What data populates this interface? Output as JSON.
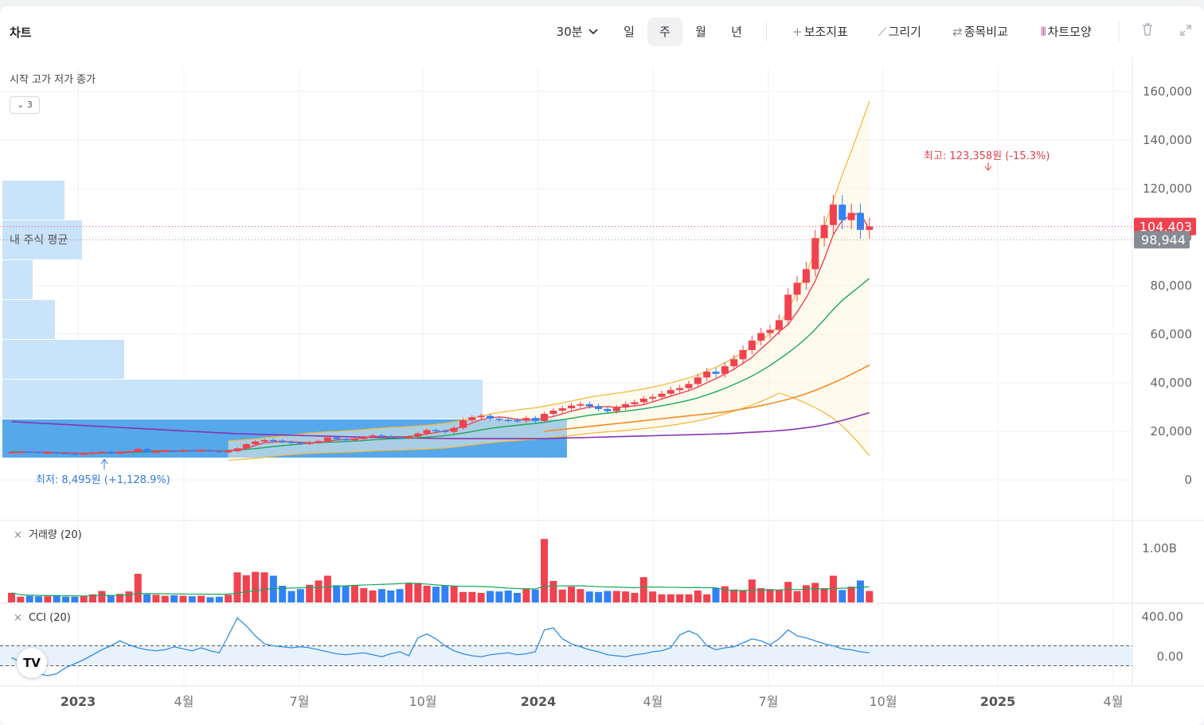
{
  "toolbar": {
    "title": "차트",
    "interval": "30분",
    "periods": [
      "일",
      "주",
      "월",
      "년"
    ],
    "active_period": "주",
    "tools": [
      {
        "icon": "plus-icon",
        "label": "보조지표"
      },
      {
        "icon": "pencil-icon",
        "label": "그리기"
      },
      {
        "icon": "compare-icon",
        "label": "종목비교"
      },
      {
        "icon": "candle-icon",
        "label": "차트모양"
      }
    ]
  },
  "ohlc_label": "시작 고가 저가 종가",
  "collapse_label": "3",
  "my_avg_label": "내 주식 평균",
  "colors": {
    "up": "#f0424f",
    "down": "#3282f6",
    "ma5": "#f0424f",
    "ma20": "#19a85c",
    "ma60": "#f28b26",
    "ma120": "#8b33b0",
    "band": "#f2b632"
  },
  "chart_data": {
    "type": "candlestick",
    "interval": "주",
    "x_ticks": [
      "2023",
      "4월",
      "7월",
      "10월",
      "2024",
      "4월",
      "7월",
      "10월",
      "2025",
      "4월"
    ],
    "y_ticks": [
      "160,000",
      "140,000",
      "120,000",
      "100,000",
      "80,000",
      "60,000",
      "40,000",
      "20,000",
      "0"
    ],
    "ylim": [
      0,
      160000
    ],
    "current_price": "104,403",
    "avg_price": "98,944",
    "high_label": "최고: 123,358원 (-15.3%)",
    "low_label": "최저: 8,495원 (+1,128.9%)",
    "close": [
      11500,
      11600,
      11500,
      11000,
      11300,
      11000,
      10800,
      10600,
      10800,
      11200,
      11600,
      10900,
      11300,
      11800,
      12800,
      11500,
      11600,
      12000,
      11800,
      12200,
      12000,
      12200,
      11900,
      11500,
      11800,
      13000,
      14700,
      15800,
      16400,
      16200,
      15700,
      15300,
      14800,
      15500,
      16000,
      17500,
      16800,
      16500,
      16800,
      17700,
      18300,
      17900,
      17600,
      17400,
      17800,
      19100,
      20500,
      20200,
      19800,
      21400,
      24600,
      25800,
      26400,
      25200,
      24800,
      24600,
      24400,
      25500,
      24300,
      27200,
      28500,
      29500,
      30600,
      31200,
      30300,
      29200,
      28300,
      29800,
      31200,
      32000,
      33500,
      34200,
      35500,
      37000,
      37800,
      39500,
      42200,
      44600,
      43700,
      46800,
      49700,
      53500,
      57400,
      60500,
      61800,
      65800,
      76300,
      81200,
      86800,
      99600,
      105000,
      113400,
      107000,
      110000,
      103000,
      104403
    ],
    "volume": [
      20,
      12,
      14,
      13,
      13,
      14,
      12,
      12,
      13,
      17,
      24,
      14,
      18,
      23,
      60,
      17,
      16,
      14,
      15,
      14,
      13,
      14,
      11,
      12,
      16,
      63,
      57,
      64,
      63,
      56,
      35,
      24,
      28,
      37,
      46,
      56,
      36,
      35,
      36,
      30,
      25,
      28,
      25,
      28,
      40,
      41,
      35,
      33,
      36,
      35,
      22,
      22,
      20,
      24,
      23,
      25,
      20,
      28,
      27,
      133,
      45,
      27,
      33,
      28,
      23,
      22,
      24,
      24,
      23,
      20,
      53,
      23,
      17,
      17,
      17,
      17,
      25,
      17,
      30,
      34,
      27,
      25,
      48,
      30,
      28,
      26,
      43,
      24,
      36,
      41,
      30,
      56,
      26,
      33,
      46,
      24
    ],
    "volume_axis": "1.00B",
    "cci_ticks": [
      "400.00",
      "0.00"
    ],
    "cci": [
      -20,
      -60,
      -120,
      -180,
      -200,
      -180,
      -120,
      -80,
      -40,
      10,
      60,
      100,
      150,
      110,
      80,
      60,
      50,
      60,
      90,
      70,
      50,
      80,
      50,
      30,
      200,
      380,
      300,
      200,
      120,
      100,
      90,
      80,
      90,
      80,
      60,
      40,
      20,
      10,
      20,
      30,
      10,
      -10,
      20,
      40,
      0,
      180,
      220,
      170,
      100,
      50,
      20,
      0,
      -10,
      10,
      20,
      30,
      10,
      20,
      40,
      260,
      280,
      170,
      120,
      90,
      60,
      40,
      10,
      0,
      -10,
      10,
      20,
      40,
      50,
      80,
      210,
      250,
      210,
      100,
      60,
      80,
      90,
      130,
      170,
      150,
      110,
      170,
      260,
      200,
      180,
      150,
      120,
      100,
      70,
      60,
      40,
      30
    ],
    "ma5": [
      11300,
      11400,
      11500,
      11400,
      11400,
      11300,
      11200,
      11000,
      10900,
      11000,
      11200,
      11300,
      11400,
      11500,
      11800,
      11900,
      12000,
      12100,
      11900,
      12000,
      12100,
      12200,
      12100,
      11900,
      11900,
      12300,
      13000,
      14200,
      15300,
      15600,
      15700,
      15700,
      15500,
      15300,
      15400,
      15900,
      16400,
      16700,
      16800,
      17300,
      17800,
      17800,
      17800,
      17800,
      17800,
      18200,
      18900,
      19500,
      20200,
      21000,
      22000,
      23400,
      24800,
      25600,
      25900,
      25600,
      24900,
      24800,
      24700,
      25500,
      26100,
      27200,
      28300,
      29200,
      30000,
      30200,
      30200,
      29900,
      30100,
      30500,
      31000,
      32100,
      33300,
      34500,
      35600,
      36800,
      38200,
      40000,
      41700,
      43600,
      45600,
      48000,
      50500,
      54000,
      57300,
      61000,
      64000,
      69200,
      75000,
      82000,
      91000,
      101000,
      107000,
      109000,
      110000,
      103000
    ],
    "ma20": [
      11600,
      11500,
      11400,
      11300,
      11200,
      11100,
      11000,
      11000,
      11000,
      11000,
      11100,
      11100,
      11200,
      11300,
      11400,
      11500,
      11600,
      11700,
      11800,
      11800,
      11900,
      12000,
      12000,
      12000,
      12100,
      12300,
      12600,
      12900,
      13300,
      13700,
      14100,
      14400,
      14800,
      15100,
      15300,
      15500,
      15600,
      15800,
      16000,
      16200,
      16500,
      16700,
      16900,
      17000,
      17200,
      17400,
      17600,
      17900,
      18200,
      18700,
      19300,
      19900,
      20600,
      21200,
      21700,
      22100,
      22500,
      22900,
      23200,
      23700,
      24300,
      24800,
      25400,
      26000,
      26600,
      27100,
      27500,
      27900,
      28300,
      28800,
      29300,
      29900,
      30500,
      31200,
      32000,
      32800,
      33800,
      35000,
      36300,
      37700,
      39300,
      41000,
      42800,
      44900,
      47100,
      49700,
      52300,
      55200,
      58400,
      62000,
      66000,
      70200,
      74000,
      77000,
      80000,
      83000
    ],
    "ma60": [
      null,
      null,
      null,
      null,
      null,
      null,
      null,
      null,
      null,
      null,
      null,
      null,
      null,
      null,
      null,
      null,
      null,
      null,
      null,
      null,
      null,
      null,
      null,
      null,
      null,
      null,
      null,
      null,
      null,
      null,
      null,
      null,
      null,
      null,
      null,
      null,
      null,
      null,
      null,
      null,
      null,
      null,
      null,
      null,
      null,
      null,
      null,
      null,
      null,
      null,
      null,
      null,
      null,
      null,
      null,
      null,
      null,
      null,
      null,
      20000,
      20400,
      20800,
      21200,
      21600,
      22000,
      22400,
      22800,
      23200,
      23600,
      24000,
      24400,
      24800,
      25200,
      25600,
      26000,
      26400,
      26800,
      27200,
      27600,
      28000,
      28600,
      29200,
      29900,
      30600,
      31400,
      32300,
      33200,
      34300,
      35500,
      36900,
      38400,
      40000,
      41700,
      43500,
      45400,
      47300
    ],
    "ma120": [
      24000,
      23800,
      23600,
      23400,
      23200,
      23000,
      22800,
      22600,
      22400,
      22200,
      22000,
      21800,
      21600,
      21400,
      21200,
      21000,
      20800,
      20600,
      20400,
      20200,
      20000,
      19800,
      19600,
      19400,
      19200,
      19000,
      18900,
      18800,
      18700,
      18600,
      18500,
      18400,
      18300,
      18200,
      18100,
      18000,
      17900,
      17800,
      17700,
      17600,
      17500,
      17400,
      17350,
      17300,
      17250,
      17200,
      17150,
      17100,
      17050,
      17000,
      17000,
      17000,
      17000,
      17000,
      17000,
      17000,
      17000,
      17000,
      17000,
      17000,
      17100,
      17200,
      17300,
      17400,
      17500,
      17600,
      17700,
      17800,
      17900,
      18000,
      18100,
      18200,
      18300,
      18400,
      18500,
      18600,
      18700,
      18800,
      18900,
      19000,
      19200,
      19400,
      19600,
      19800,
      20000,
      20300,
      20600,
      21000,
      21500,
      22000,
      22700,
      23500,
      24500,
      25500,
      26600,
      27700
    ]
  }
}
